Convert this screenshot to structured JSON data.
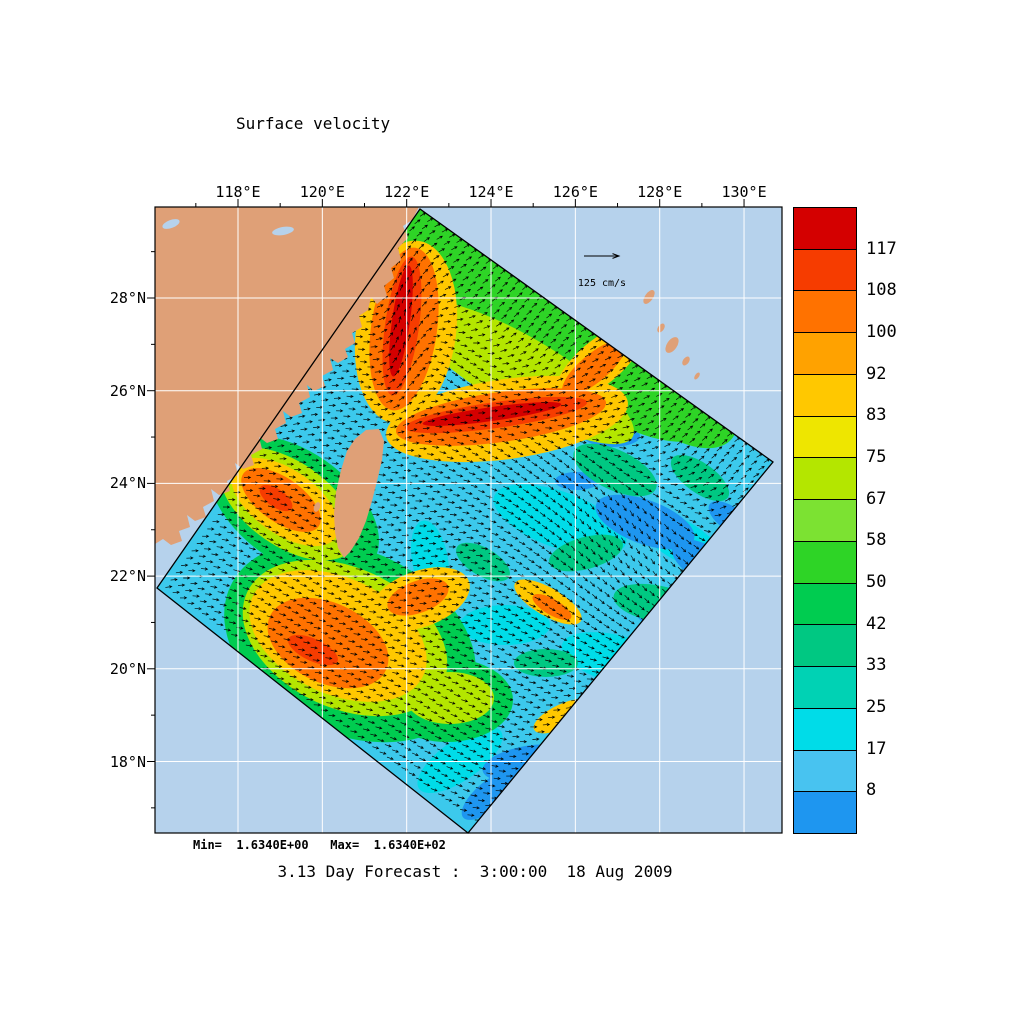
{
  "title": "Surface velocity",
  "footer": {
    "stats": "Min=  1.6340E+00   Max=  1.6340E+02",
    "caption": "3.13 Day Forecast :  3:00:00  18 Aug 2009"
  },
  "reference_vector": {
    "label": "125 cm/s"
  },
  "axes": {
    "lon_labels": [
      "118°E",
      "120°E",
      "122°E",
      "124°E",
      "126°E",
      "128°E",
      "130°E"
    ],
    "lat_labels": [
      "28°N",
      "26°N",
      "24°N",
      "22°N",
      "20°N",
      "18°N"
    ]
  },
  "colorbar": {
    "tick_labels": [
      "117",
      "108",
      "100",
      "92",
      "83",
      "75",
      "67",
      "58",
      "50",
      "42",
      "33",
      "25",
      "17",
      "8"
    ],
    "colors_top_to_bottom": [
      "#d40000",
      "#f63c00",
      "#ff7200",
      "#ffa200",
      "#ffc800",
      "#eee600",
      "#b4e600",
      "#7ce232",
      "#2ed426",
      "#00cc50",
      "#00c882",
      "#00d2b4",
      "#00dce8",
      "#48c3f0",
      "#1e96f0"
    ]
  },
  "colors": {
    "ocean": "#b6d2ec",
    "land": "#dfa077",
    "field_base": "#3cc9ec",
    "grid": "#ffffff",
    "vectors": "#000000",
    "frame": "#000000"
  },
  "chart_data": {
    "type": "heatmap",
    "subtype": "ocean-surface-velocity-vector-field",
    "title": "Surface velocity",
    "lon_ticks_deg_east": [
      118,
      120,
      122,
      124,
      126,
      128,
      130
    ],
    "lat_ticks_deg_north": [
      28,
      26,
      24,
      22,
      20,
      18
    ],
    "colorbar_levels_cm_per_s": [
      8,
      17,
      25,
      33,
      42,
      50,
      58,
      67,
      75,
      83,
      92,
      100,
      108,
      117
    ],
    "value_min": "1.6340E+00",
    "value_max": "1.6340E+02",
    "reference_vector": "125 cm/s",
    "forecast_lead_days": "3.13",
    "valid_time": "3:00:00 18 Aug 2009"
  }
}
